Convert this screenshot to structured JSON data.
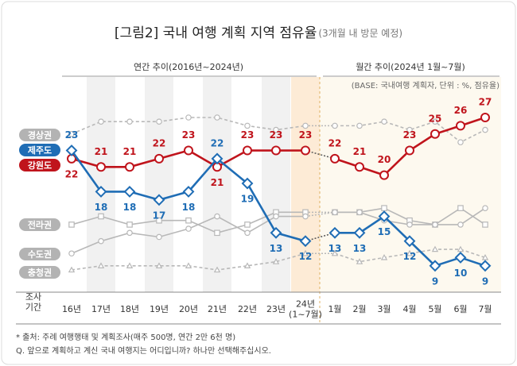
{
  "chart_data": {
    "type": "line",
    "title": "[그림2] 국내 여행 계획 지역 점유율",
    "subtitle": "(3개월 내 방문 예정)",
    "annual_header": "연간 추이(2016년~2024년)",
    "monthly_header": "월간 추이(2024년 1월~7월)",
    "base_note": "(BASE: 국내여행 계획자, 단위 : %, 점유율)",
    "x_label": "조사\n기간",
    "categories": [
      "16년",
      "17년",
      "18년",
      "19년",
      "20년",
      "21년",
      "22년",
      "23년",
      "24년\n(1~7월)",
      "1월",
      "2월",
      "3월",
      "4월",
      "5월",
      "6월",
      "7월"
    ],
    "series": [
      {
        "name": "경상권",
        "color": "#b8b8b8",
        "line_style": "dashed",
        "marker": "circle",
        "values": [
          25,
          26.5,
          26.5,
          26.5,
          27,
          27,
          26,
          25.5,
          26,
          26,
          26,
          26.5,
          25.5,
          26.5,
          24,
          25.5
        ]
      },
      {
        "name": "제주도",
        "color": "#1f6db5",
        "line_style": "solid",
        "marker": "diamond",
        "data_labels": true,
        "values": [
          23,
          18,
          18,
          17,
          18,
          22,
          19,
          13,
          12,
          13,
          13,
          15,
          12,
          9,
          10,
          9
        ]
      },
      {
        "name": "강원도",
        "color": "#c0141c",
        "line_style": "solid",
        "marker": "circle",
        "data_labels": true,
        "values": [
          22,
          21,
          21,
          22,
          23,
          21,
          23,
          23,
          23,
          22,
          21,
          20,
          23,
          25,
          26,
          27
        ]
      },
      {
        "name": "전라권",
        "color": "#b8b8b8",
        "line_style": "solid",
        "marker": "square",
        "values": [
          14,
          15,
          14,
          14.5,
          14.5,
          13,
          14,
          15.5,
          15.5,
          15.5,
          15.5,
          16,
          14.5,
          14,
          16,
          14
        ]
      },
      {
        "name": "수도권",
        "color": "#b8b8b8",
        "line_style": "solid",
        "marker": "circle",
        "values": [
          10.5,
          12,
          13,
          12.5,
          13.5,
          15,
          13,
          15,
          15,
          15.5,
          15.5,
          14.5,
          14,
          14,
          14,
          16
        ]
      },
      {
        "name": "충청권",
        "color": "#b8b8b8",
        "line_style": "dashed",
        "marker": "triangle",
        "values": [
          8.5,
          9,
          9,
          9,
          9,
          8.5,
          9,
          9.5,
          10.5,
          10.5,
          9.5,
          10,
          10.5,
          11,
          11,
          10
        ]
      }
    ],
    "footnotes": [
      "* 출처: 주례 여행행태 및 계획조사(매주 500명, 연간 2만 6천 명)",
      "Q. 앞으로 계획하고 계신 국내 여행지는 어디입니까? 하나만 선택해주십시오."
    ]
  }
}
